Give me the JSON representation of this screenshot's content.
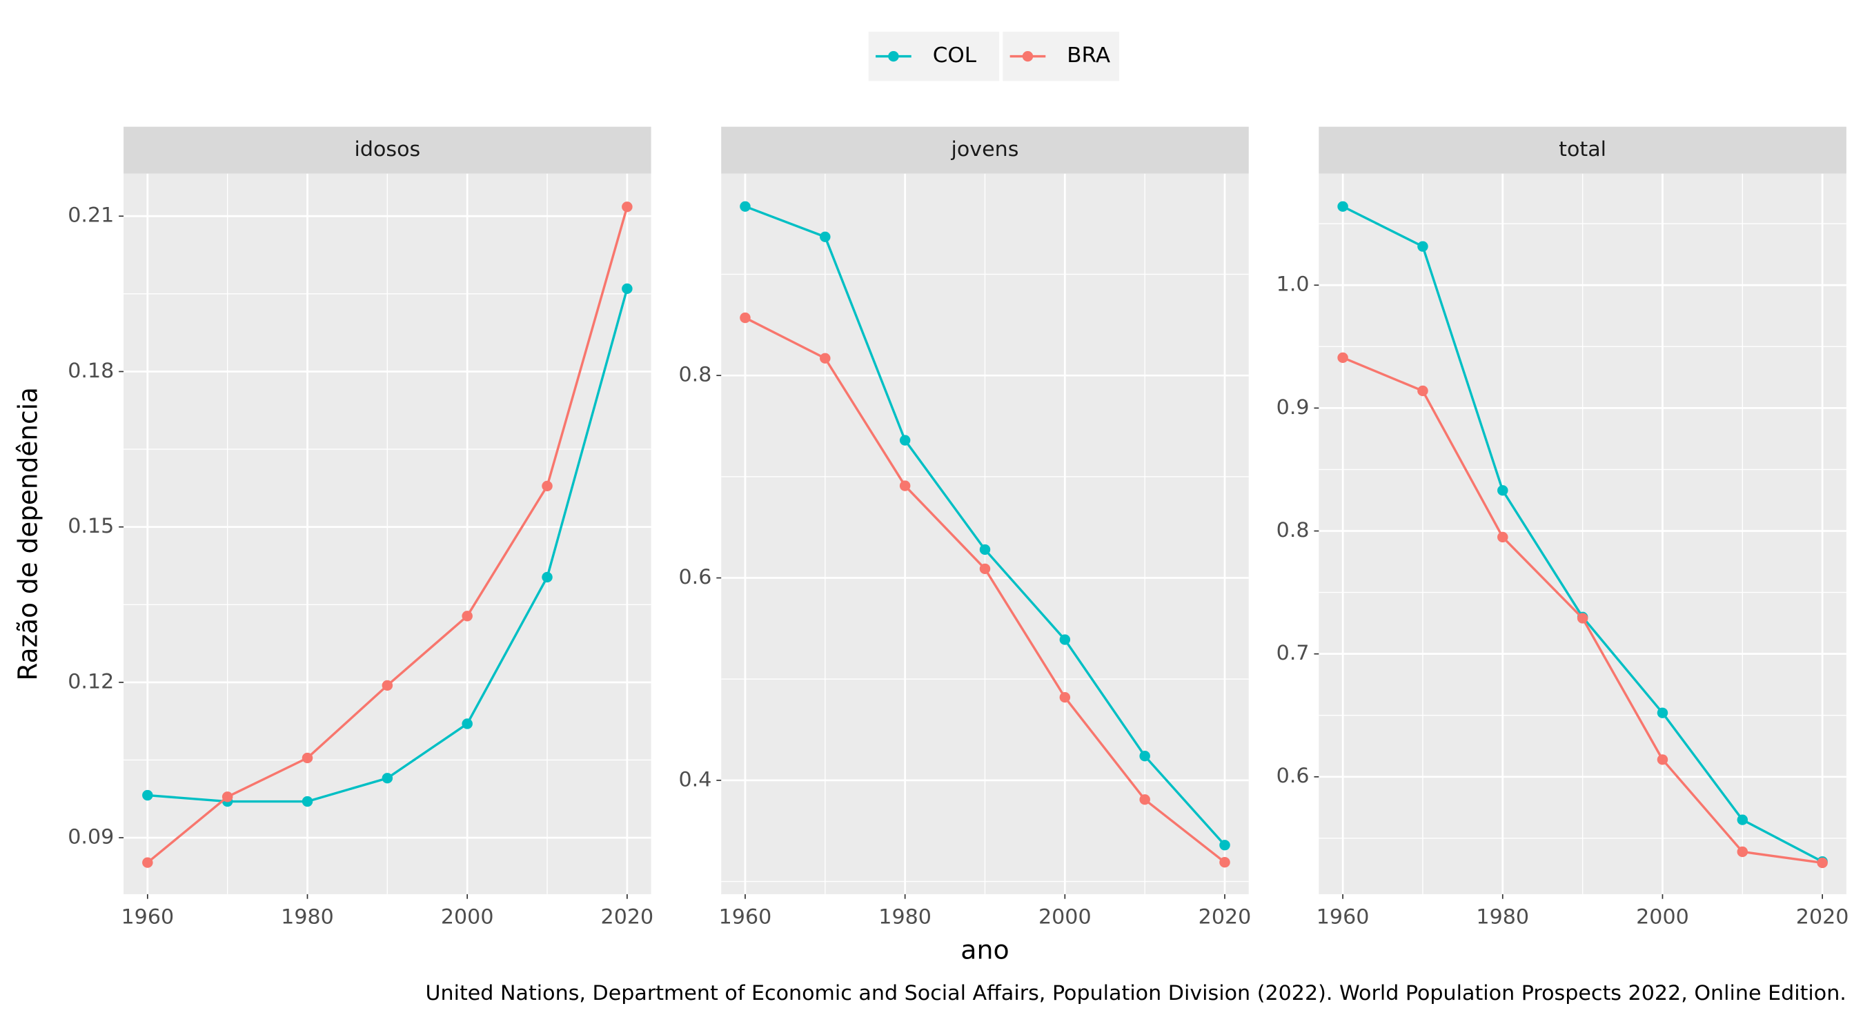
{
  "chart_data": [
    {
      "type": "line",
      "title": "idosos",
      "x": [
        1960,
        1970,
        1980,
        1990,
        2000,
        2010,
        2020
      ],
      "series": [
        {
          "name": "COL",
          "color": "#00BFC4",
          "values": [
            0.0982,
            0.097,
            0.097,
            0.1015,
            0.112,
            0.1403,
            0.196
          ]
        },
        {
          "name": "BRA",
          "color": "#F8766D",
          "values": [
            0.0852,
            0.0979,
            0.1054,
            0.1194,
            0.1328,
            0.1579,
            0.2118
          ]
        }
      ],
      "xlim": [
        1957,
        2023
      ],
      "xticks": [
        1960,
        1980,
        2000,
        2020
      ],
      "ylim": [
        0.0791,
        0.2182
      ],
      "yticks": [
        0.09,
        0.12,
        0.15,
        0.18,
        0.21
      ],
      "grid": true
    },
    {
      "type": "line",
      "title": "jovens",
      "x": [
        1960,
        1970,
        1980,
        1990,
        2000,
        2010,
        2020
      ],
      "series": [
        {
          "name": "COL",
          "color": "#00BFC4",
          "values": [
            0.967,
            0.937,
            0.736,
            0.628,
            0.539,
            0.424,
            0.336
          ]
        },
        {
          "name": "BRA",
          "color": "#F8766D",
          "values": [
            0.857,
            0.817,
            0.691,
            0.609,
            0.482,
            0.381,
            0.319
          ]
        }
      ],
      "xlim": [
        1957,
        2023
      ],
      "xticks": [
        1960,
        1980,
        2000,
        2020
      ],
      "ylim": [
        0.2875,
        0.9994
      ],
      "yticks": [
        0.4,
        0.6,
        0.8
      ],
      "grid": true
    },
    {
      "type": "line",
      "title": "total",
      "x": [
        1960,
        1970,
        1980,
        1990,
        2000,
        2010,
        2020
      ],
      "series": [
        {
          "name": "COL",
          "color": "#00BFC4",
          "values": [
            1.064,
            1.0315,
            0.833,
            0.73,
            0.652,
            0.565,
            0.531
          ]
        },
        {
          "name": "BRA",
          "color": "#F8766D",
          "values": [
            0.941,
            0.914,
            0.795,
            0.729,
            0.614,
            0.539,
            0.53
          ]
        }
      ],
      "xlim": [
        1957,
        2023
      ],
      "xticks": [
        1960,
        1980,
        2000,
        2020
      ],
      "ylim": [
        0.5045,
        1.0907
      ],
      "yticks": [
        0.6,
        0.7,
        0.8,
        0.9,
        {
          "value": 1,
          "label": "1.0"
        }
      ],
      "grid": true
    }
  ],
  "y_label": "Razão de dependência",
  "x_label": "ano",
  "caption": "United Nations, Department of Economic and Social Affairs, Population Division (2022). World Population Prospects 2022, Online Edition."
}
